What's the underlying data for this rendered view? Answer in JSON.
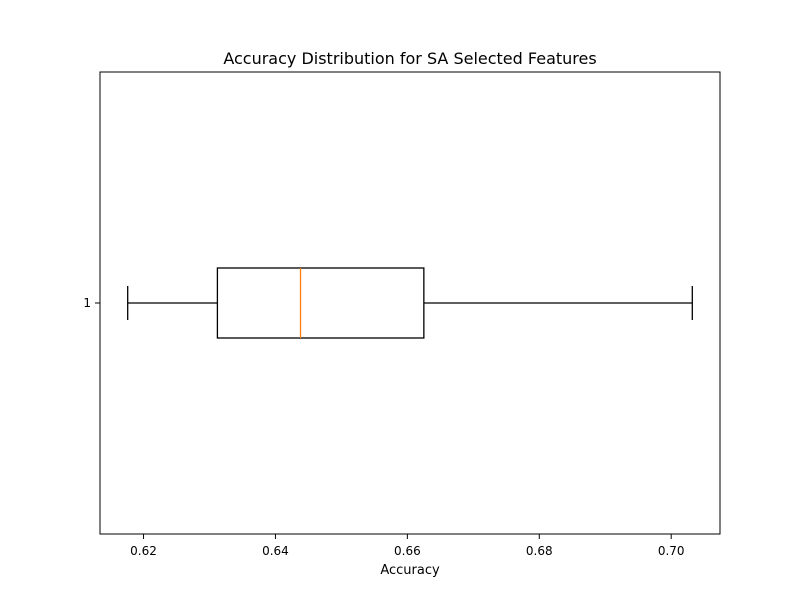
{
  "chart_data": {
    "type": "boxplot",
    "title": "Accuracy Distribution for SA Selected Features",
    "xlabel": "Accuracy",
    "ylabel": "",
    "orientation": "horizontal",
    "xlim": [
      0.6134,
      0.7074
    ],
    "xticks": [
      0.62,
      0.64,
      0.66,
      0.68,
      0.7
    ],
    "xtick_labels": [
      "0.62",
      "0.64",
      "0.66",
      "0.68",
      "0.70"
    ],
    "categories": [
      "1"
    ],
    "boxes": [
      {
        "category": "1",
        "whisker_low": 0.6176,
        "q1": 0.6312,
        "median": 0.6438,
        "q3": 0.6625,
        "whisker_high": 0.7032
      }
    ],
    "grid": false,
    "colors": {
      "box": "#000000",
      "median": "#ff7f0e"
    }
  }
}
